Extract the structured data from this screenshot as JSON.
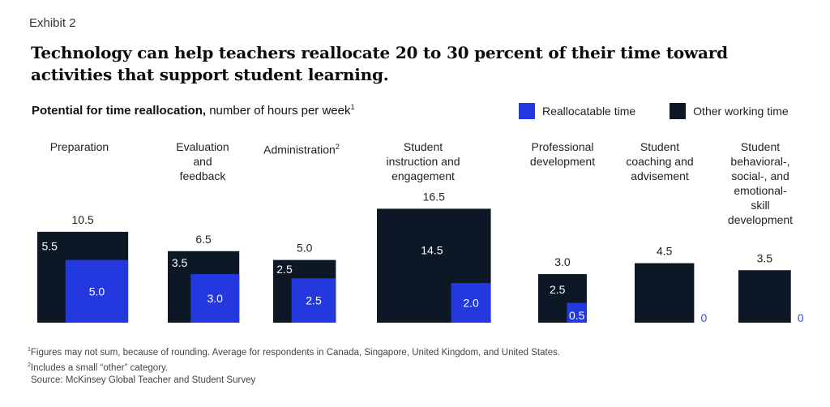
{
  "exhibit_label": "Exhibit 2",
  "title": "Technology can help teachers reallocate 20 to 30 percent of their time toward activities that support student learning.",
  "subtitle": {
    "bold": "Potential for time reallocation,",
    "rest": " number of hours per week",
    "footnote_mark": "1"
  },
  "colors": {
    "reallocatable": "#2438e0",
    "other": "#0c1826",
    "zero_label": "#3a4fc8"
  },
  "chart_data": {
    "type": "nested-square",
    "title": "Potential for time reallocation, number of hours per week",
    "unit": "hours per week",
    "legend": [
      {
        "key": "reallocatable",
        "label": "Reallocatable time"
      },
      {
        "key": "other",
        "label": "Other working time"
      }
    ],
    "legend_position": "top-right",
    "categories": [
      {
        "label_lines": [
          "Preparation"
        ],
        "sup": "",
        "total": 10.5,
        "other": 5.5,
        "reallocatable": 5.0,
        "total_label": "10.5",
        "other_label": "5.5",
        "reallocatable_label": "5.0"
      },
      {
        "label_lines": [
          "Evaluation",
          "and",
          "feedback"
        ],
        "sup": "",
        "total": 6.5,
        "other": 3.5,
        "reallocatable": 3.0,
        "total_label": "6.5",
        "other_label": "3.5",
        "reallocatable_label": "3.0"
      },
      {
        "label_lines": [
          "Administration"
        ],
        "sup": "2",
        "total": 5.0,
        "other": 2.5,
        "reallocatable": 2.5,
        "total_label": "5.0",
        "other_label": "2.5",
        "reallocatable_label": "2.5"
      },
      {
        "label_lines": [
          "Student",
          "instruction and",
          "engagement"
        ],
        "sup": "",
        "total": 16.5,
        "other": 14.5,
        "reallocatable": 2.0,
        "total_label": "16.5",
        "other_label": "14.5",
        "reallocatable_label": "2.0"
      },
      {
        "label_lines": [
          "Professional",
          "development"
        ],
        "sup": "",
        "total": 3.0,
        "other": 2.5,
        "reallocatable": 0.5,
        "total_label": "3.0",
        "other_label": "2.5",
        "reallocatable_label": "0.5"
      },
      {
        "label_lines": [
          "Student",
          "coaching and",
          "advisement"
        ],
        "sup": "",
        "total": 4.5,
        "other": 4.5,
        "reallocatable": 0,
        "total_label": "4.5",
        "other_label": "",
        "reallocatable_label": "0"
      },
      {
        "label_lines": [
          "Student",
          "behavioral-,",
          "social-, and",
          "emotional-skill",
          "development"
        ],
        "sup": "",
        "total": 3.5,
        "other": 3.5,
        "reallocatable": 0,
        "total_label": "3.5",
        "other_label": "",
        "reallocatable_label": "0"
      }
    ]
  },
  "footnotes": [
    {
      "mark": "1",
      "text": "Figures may not sum, because of rounding. Average for respondents in Canada, Singapore, United Kingdom, and United States."
    },
    {
      "mark": "2",
      "text": "Includes a small “other” category."
    }
  ],
  "source": "Source: McKinsey Global Teacher and Student Survey"
}
